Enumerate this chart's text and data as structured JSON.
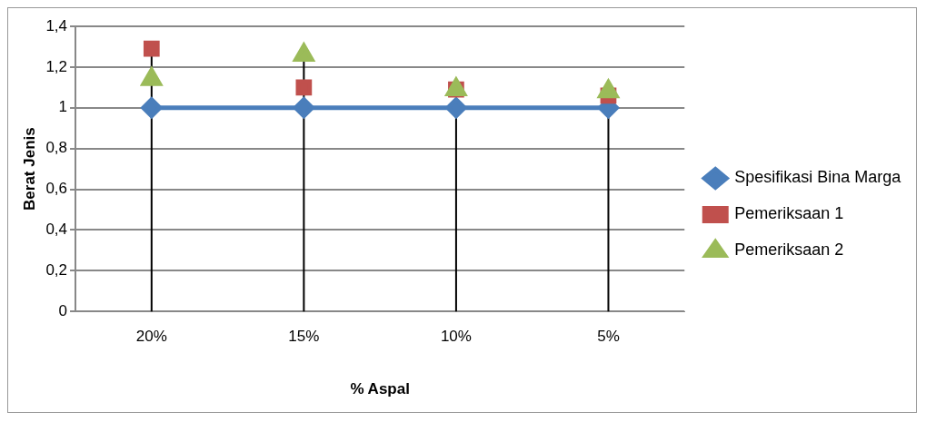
{
  "chart_data": {
    "type": "line",
    "xlabel": "% Aspal",
    "ylabel": "Berat Jenis",
    "categories": [
      "20%",
      "15%",
      "10%",
      "5%"
    ],
    "series": [
      {
        "name": "Spesifikasi Bina Marga",
        "type": "line",
        "color": "#4a7ebb",
        "marker": "diamond",
        "values": [
          1,
          1,
          1,
          1
        ]
      },
      {
        "name": "Pemeriksaan 1",
        "type": "scatter",
        "color": "#c0504d",
        "marker": "square",
        "values": [
          1.29,
          1.1,
          1.09,
          1.06
        ]
      },
      {
        "name": "Pemeriksaan 2",
        "type": "scatter",
        "color": "#9bbb59",
        "marker": "triangle",
        "values": [
          1.14,
          1.26,
          1.09,
          1.08
        ]
      }
    ],
    "ylim": [
      0,
      1.4
    ],
    "yticks": [
      {
        "value": 0,
        "label": "0"
      },
      {
        "value": 0.2,
        "label": "0,2"
      },
      {
        "value": 0.4,
        "label": "0,4"
      },
      {
        "value": 0.6,
        "label": "0,6"
      },
      {
        "value": 0.8,
        "label": "0,8"
      },
      {
        "value": 1,
        "label": "1"
      },
      {
        "value": 1.2,
        "label": "1,2"
      },
      {
        "value": 1.4,
        "label": "1,4"
      }
    ],
    "grid": true,
    "legend": "right"
  }
}
